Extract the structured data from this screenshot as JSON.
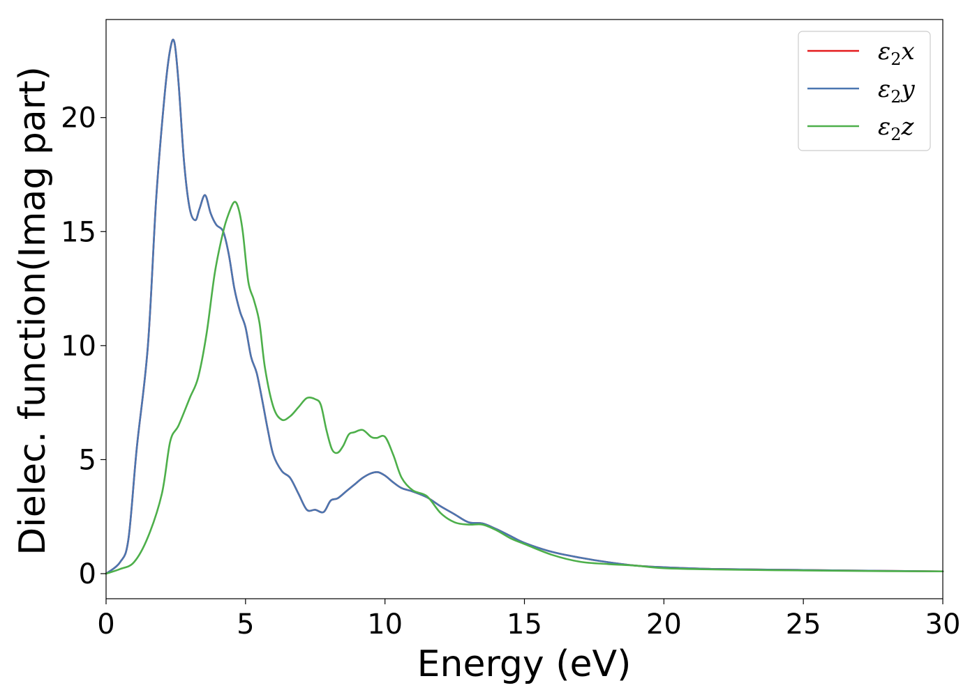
{
  "chart_data": {
    "type": "line",
    "xlabel": "Energy (eV)",
    "ylabel": "Dielec. function(Imag part)",
    "xlim": [
      0,
      30
    ],
    "ylim": [
      -1.1,
      24.3
    ],
    "xticks": [
      0,
      5,
      10,
      15,
      20,
      25,
      30
    ],
    "yticks": [
      0,
      5,
      10,
      15,
      20
    ],
    "grid": false,
    "legend_position": "top-right",
    "series": [
      {
        "name": "ε2x",
        "legend_sub": {
          "base": "ε",
          "sub": "2",
          "suffix": "x"
        },
        "color": "#e41a1c",
        "x": [
          0,
          0.5,
          0.8,
          1.1,
          1.5,
          1.8,
          2.1,
          2.3,
          2.45,
          2.6,
          2.8,
          3.0,
          3.2,
          3.35,
          3.55,
          3.75,
          3.95,
          4.2,
          4.4,
          4.6,
          4.8,
          5.0,
          5.2,
          5.4,
          5.6,
          5.8,
          6.0,
          6.3,
          6.6,
          6.9,
          7.2,
          7.5,
          7.8,
          8.05,
          8.3,
          8.6,
          8.9,
          9.2,
          9.5,
          9.75,
          10.0,
          10.3,
          10.6,
          11.0,
          11.5,
          12.0,
          12.5,
          13.0,
          13.5,
          14.0,
          14.5,
          15.0,
          16.0,
          17.0,
          18.0,
          19.0,
          20.0,
          22.0,
          25.0,
          28.0,
          30.0
        ],
        "values": [
          0,
          0.5,
          1.5,
          5.5,
          10.0,
          16.5,
          21.0,
          23.0,
          23.3,
          21.5,
          18.0,
          16.0,
          15.5,
          16.0,
          16.6,
          15.8,
          15.3,
          15.0,
          14.0,
          12.5,
          11.5,
          10.8,
          9.5,
          8.8,
          7.6,
          6.3,
          5.2,
          4.5,
          4.2,
          3.5,
          2.8,
          2.8,
          2.7,
          3.2,
          3.3,
          3.6,
          3.9,
          4.2,
          4.4,
          4.45,
          4.3,
          4.0,
          3.75,
          3.6,
          3.35,
          2.95,
          2.6,
          2.25,
          2.2,
          1.95,
          1.65,
          1.35,
          0.95,
          0.7,
          0.5,
          0.35,
          0.28,
          0.2,
          0.16,
          0.12,
          0.1
        ]
      },
      {
        "name": "ε2y",
        "legend_sub": {
          "base": "ε",
          "sub": "2",
          "suffix": "y"
        },
        "color": "#4a76b0",
        "x": [
          0,
          0.5,
          0.8,
          1.1,
          1.5,
          1.8,
          2.1,
          2.3,
          2.45,
          2.6,
          2.8,
          3.0,
          3.2,
          3.35,
          3.55,
          3.75,
          3.95,
          4.2,
          4.4,
          4.6,
          4.8,
          5.0,
          5.2,
          5.4,
          5.6,
          5.8,
          6.0,
          6.3,
          6.6,
          6.9,
          7.2,
          7.5,
          7.8,
          8.05,
          8.3,
          8.6,
          8.9,
          9.2,
          9.5,
          9.75,
          10.0,
          10.3,
          10.6,
          11.0,
          11.5,
          12.0,
          12.5,
          13.0,
          13.5,
          14.0,
          14.5,
          15.0,
          16.0,
          17.0,
          18.0,
          19.0,
          20.0,
          22.0,
          25.0,
          28.0,
          30.0
        ],
        "values": [
          0,
          0.5,
          1.5,
          5.5,
          10.0,
          16.5,
          21.0,
          23.0,
          23.3,
          21.5,
          18.0,
          16.0,
          15.5,
          16.0,
          16.6,
          15.8,
          15.3,
          15.0,
          14.0,
          12.5,
          11.5,
          10.8,
          9.5,
          8.8,
          7.6,
          6.3,
          5.2,
          4.5,
          4.2,
          3.5,
          2.8,
          2.8,
          2.7,
          3.2,
          3.3,
          3.6,
          3.9,
          4.2,
          4.4,
          4.45,
          4.3,
          4.0,
          3.75,
          3.6,
          3.35,
          2.95,
          2.6,
          2.25,
          2.2,
          1.95,
          1.65,
          1.35,
          0.95,
          0.7,
          0.5,
          0.35,
          0.28,
          0.2,
          0.16,
          0.12,
          0.1
        ]
      },
      {
        "name": "ε2z",
        "legend_sub": {
          "base": "ε",
          "sub": "2",
          "suffix": "z"
        },
        "color": "#4daf4a",
        "x": [
          0,
          0.5,
          1.0,
          1.5,
          2.0,
          2.3,
          2.6,
          3.0,
          3.3,
          3.6,
          3.9,
          4.2,
          4.4,
          4.6,
          4.75,
          4.9,
          5.1,
          5.3,
          5.5,
          5.7,
          6.0,
          6.3,
          6.6,
          6.9,
          7.2,
          7.5,
          7.7,
          7.9,
          8.1,
          8.3,
          8.5,
          8.7,
          8.9,
          9.2,
          9.5,
          9.7,
          10.0,
          10.3,
          10.6,
          11.0,
          11.5,
          12.0,
          12.5,
          13.0,
          13.5,
          14.0,
          14.5,
          15.0,
          16.0,
          17.0,
          18.0,
          19.0,
          20.0,
          22.0,
          25.0,
          28.0,
          30.0
        ],
        "values": [
          0,
          0.2,
          0.5,
          1.6,
          3.5,
          5.8,
          6.5,
          7.7,
          8.6,
          10.5,
          13.2,
          15.0,
          15.8,
          16.3,
          16.0,
          15.0,
          12.8,
          12.0,
          11.0,
          9.0,
          7.3,
          6.75,
          6.9,
          7.3,
          7.7,
          7.65,
          7.4,
          6.3,
          5.45,
          5.3,
          5.6,
          6.1,
          6.2,
          6.3,
          6.0,
          5.95,
          6.0,
          5.2,
          4.2,
          3.65,
          3.4,
          2.65,
          2.25,
          2.15,
          2.15,
          1.9,
          1.55,
          1.3,
          0.82,
          0.52,
          0.42,
          0.35,
          0.24,
          0.18,
          0.14,
          0.11,
          0.1
        ]
      }
    ]
  }
}
